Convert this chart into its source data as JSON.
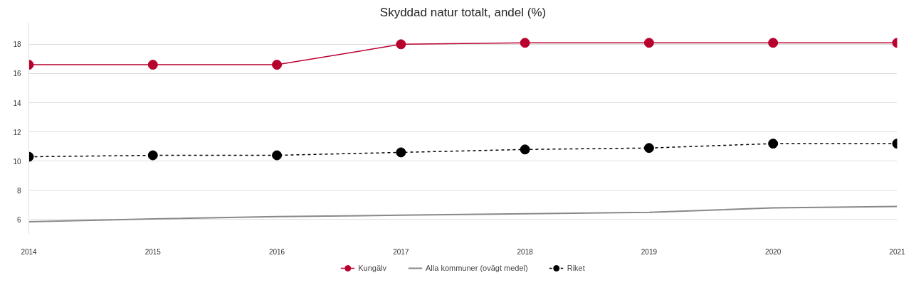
{
  "chart_data": {
    "type": "line",
    "title": "Skyddad natur totalt, andel (%)",
    "x": [
      2014,
      2015,
      2016,
      2017,
      2018,
      2019,
      2020,
      2021
    ],
    "xlim": [
      2014,
      2021
    ],
    "xticks": [
      2014,
      2015,
      2016,
      2017,
      2018,
      2019,
      2020,
      2021
    ],
    "ylim": [
      5,
      19.5
    ],
    "yticks": [
      6,
      8,
      10,
      12,
      14,
      16,
      18
    ],
    "grid": "y",
    "legend": "bottom",
    "series": [
      {
        "name": "Kungälv",
        "color": "#b8002e",
        "marker": "circle",
        "line_style": "solid",
        "values": [
          16.6,
          16.6,
          16.6,
          18.0,
          18.1,
          18.1,
          18.1,
          18.1
        ]
      },
      {
        "name": "Alla kommuner (ovägt medel)",
        "color": "#888888",
        "marker": "none",
        "line_style": "solid",
        "values": [
          5.85,
          6.05,
          6.2,
          6.3,
          6.4,
          6.5,
          6.8,
          6.9
        ]
      },
      {
        "name": "Riket",
        "color": "#000000",
        "marker": "circle",
        "line_style": "dashed",
        "values": [
          10.3,
          10.4,
          10.4,
          10.6,
          10.8,
          10.9,
          11.2,
          11.2
        ]
      }
    ]
  }
}
